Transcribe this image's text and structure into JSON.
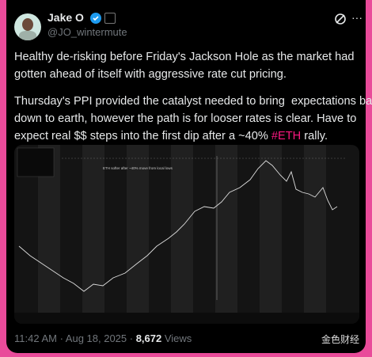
{
  "header": {
    "name": "Jake O",
    "handle": "@JO_wintermute"
  },
  "body": {
    "paragraph1": [
      "Healthy de-risking before Friday's Jackson Hole as the market had",
      "gotten ahead of itself with aggressive rate cut pricing."
    ],
    "paragraph2": [
      "Thursday's PPI provided the catalyst needed to bring  expectations back",
      "down to earth, however the path is for looser rates is clear. Have to"
    ],
    "last_line": {
      "before": "expect real $$ steps into the first dip after a ~40% ",
      "hashtag": "#ETH",
      "after": " rally."
    }
  },
  "image": {
    "annotation": "ETH softer after ~40% move from local lows"
  },
  "footer": {
    "time": "11:42 AM · Aug 18, 2025 · ",
    "views_count": "8,672",
    "views_label": " Views"
  },
  "watermark": "金色财经"
}
